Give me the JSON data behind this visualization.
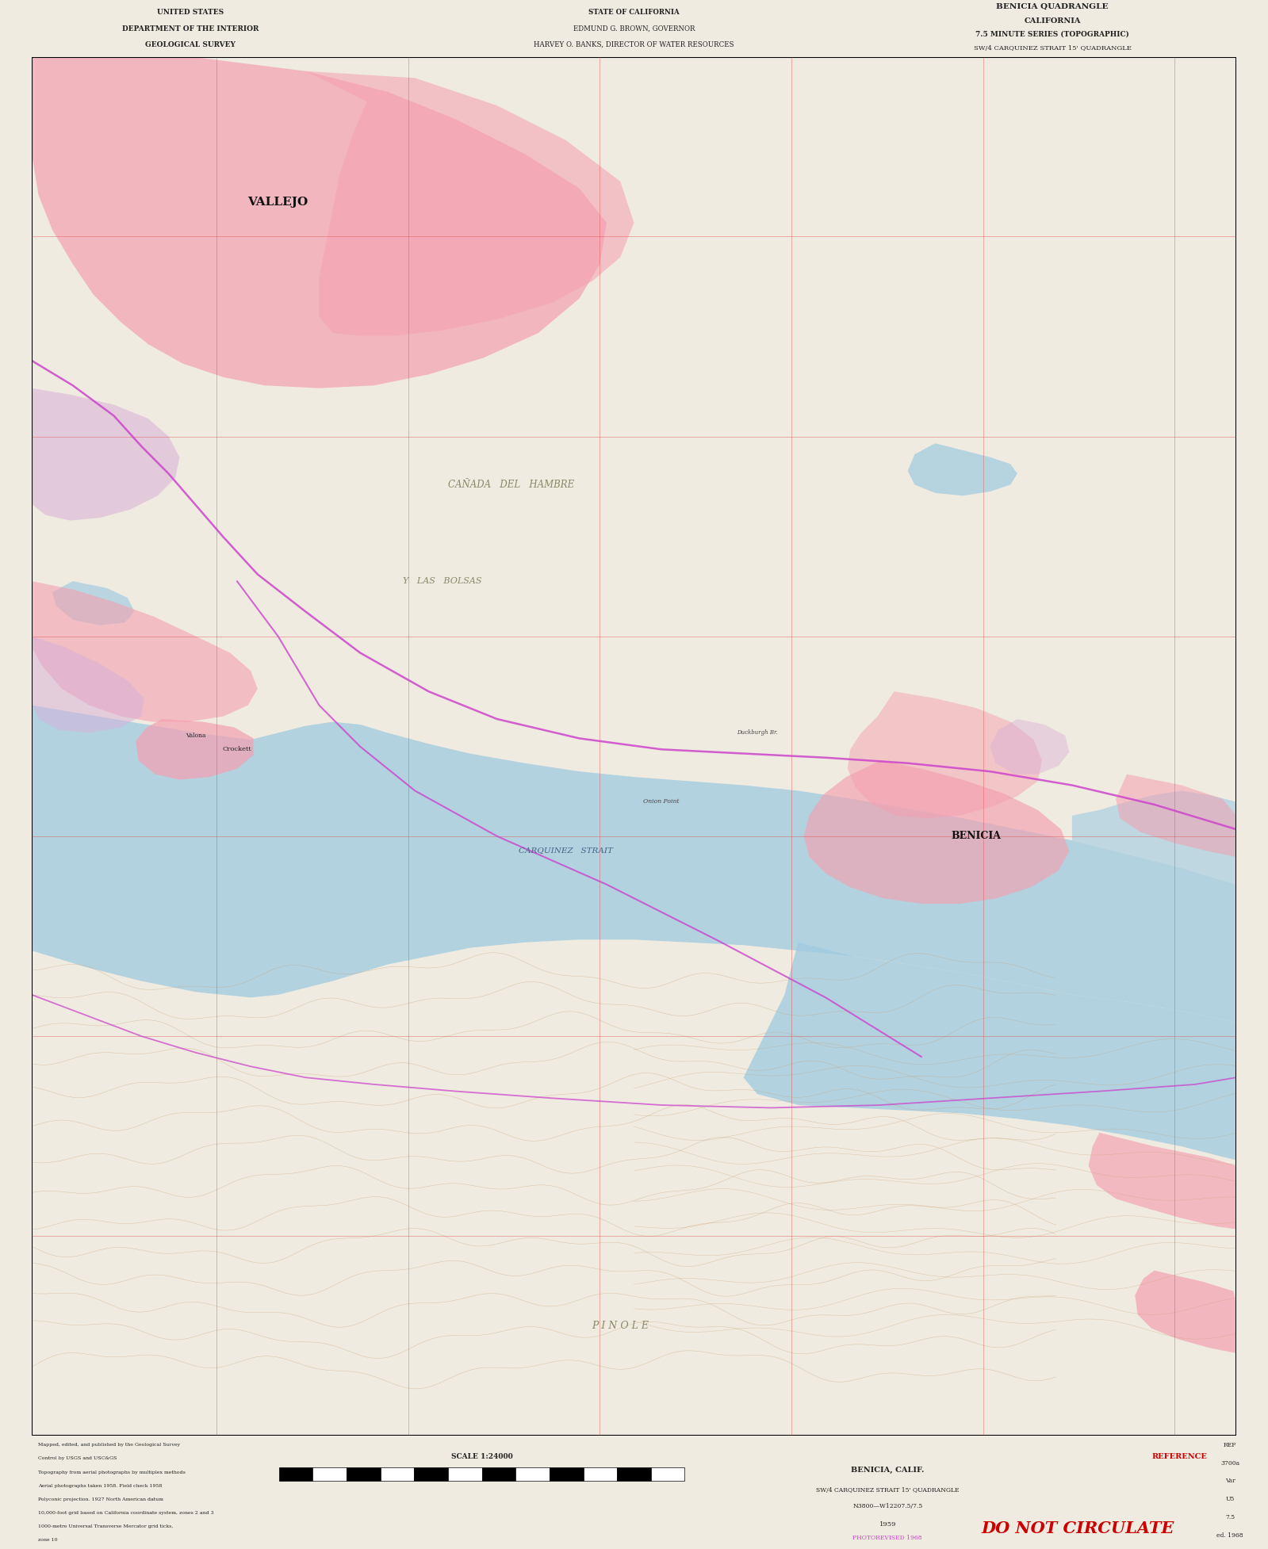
{
  "background_color": "#f0ebe0",
  "map_bg": "#f0ebe0",
  "water_color": "#9ecae1",
  "water_alpha": 0.75,
  "urban_color": "#f4a0b0",
  "urban_color_dark": "#e06070",
  "military_color": "#d8b0d8",
  "grid_color": "#e05050",
  "grid_alpha": 0.5,
  "grid_lw": 0.6,
  "contour_color": "#c8a070",
  "road_color": "#cc0000",
  "highway_color": "#cc44cc",
  "text_color": "#222222",
  "border_color": "#000000",
  "fig_width": 15.99,
  "fig_height": 19.54,
  "header_left": "UNITED STATES\nDEPARTMENT OF THE INTERIOR\nGEOLOGICAL SURVEY",
  "header_center": "STATE OF CALIFORNIA\nEDMUND G. BROWN, GOVERNOR\nHARVEY O. BANKS, DIRECTOR OF WATER RESOURCES",
  "header_right_l1": "BENICIA QUADRANGLE",
  "header_right_l2": "CALIFORNIA",
  "header_right_l3": "7.5 MINUTE SERIES (TOPOGRAPHIC)",
  "header_right_l4": "SW/4 CARQUINEZ STRAIT 15' QUADRANGLE",
  "bottom_stamp": "DO NOT CIRCULATE",
  "scale_label": "SCALE 1:24000",
  "benicia_label": "BENICIA, CALIF.",
  "benicia_sub": "SW/4 CARQUINEZ STRAIT 15' QUADRANGLE\nN3800—W12207.5/7.5",
  "ref_label": "REF\n3700a\nVar\nU5\n7.5\ned. 1968"
}
